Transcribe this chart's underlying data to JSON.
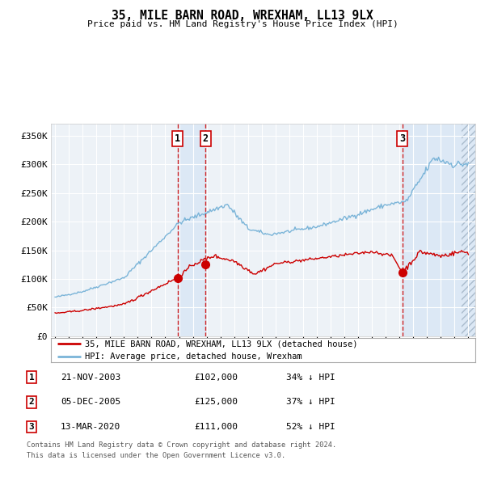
{
  "title": "35, MILE BARN ROAD, WREXHAM, LL13 9LX",
  "subtitle": "Price paid vs. HM Land Registry's House Price Index (HPI)",
  "ylim": [
    0,
    370000
  ],
  "yticks": [
    0,
    50000,
    100000,
    150000,
    200000,
    250000,
    300000,
    350000
  ],
  "ytick_labels": [
    "£0",
    "£50K",
    "£100K",
    "£150K",
    "£200K",
    "£250K",
    "£300K",
    "£350K"
  ],
  "hpi_color": "#7ab4d8",
  "price_color": "#cc0000",
  "background_color": "#ffffff",
  "plot_bg_color": "#edf2f7",
  "grid_color": "#ffffff",
  "shade_color": "#dce8f5",
  "sale1_date": 2003.896,
  "sale1_price": 102000,
  "sale2_date": 2005.921,
  "sale2_price": 125000,
  "sale3_date": 2020.2,
  "sale3_price": 111000,
  "legend_price_label": "35, MILE BARN ROAD, WREXHAM, LL13 9LX (detached house)",
  "legend_hpi_label": "HPI: Average price, detached house, Wrexham",
  "footer_line1": "Contains HM Land Registry data © Crown copyright and database right 2024.",
  "footer_line2": "This data is licensed under the Open Government Licence v3.0.",
  "table_rows": [
    {
      "num": "1",
      "date": "21-NOV-2003",
      "price": "£102,000",
      "hpi": "34% ↓ HPI"
    },
    {
      "num": "2",
      "date": "05-DEC-2005",
      "price": "£125,000",
      "hpi": "37% ↓ HPI"
    },
    {
      "num": "3",
      "date": "13-MAR-2020",
      "price": "£111,000",
      "hpi": "52% ↓ HPI"
    }
  ]
}
